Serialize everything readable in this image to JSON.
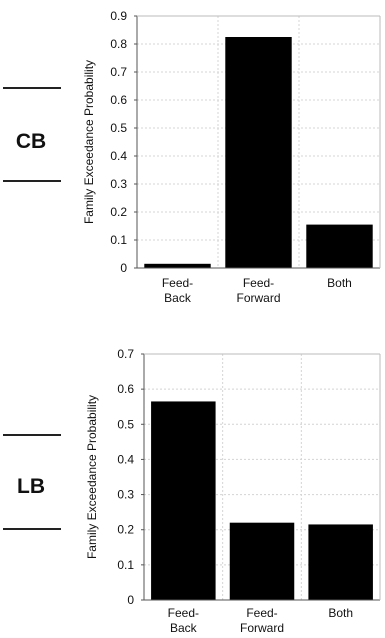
{
  "chart_data": [
    {
      "type": "bar",
      "side_label": "CB",
      "categories": [
        [
          "Feed-",
          "Back"
        ],
        [
          "Feed-",
          "Forward"
        ],
        [
          "Both"
        ]
      ],
      "values": [
        0.015,
        0.825,
        0.155
      ],
      "ylabel": "Family Exceedance Probability",
      "ylim": [
        0,
        0.9
      ],
      "yticks": [
        "0",
        "0.1",
        "0.2",
        "0.3",
        "0.4",
        "0.5",
        "0.6",
        "0.7",
        "0.8",
        "0.9"
      ],
      "grid": true,
      "bar_color": "#000000",
      "grid_color": "#d4d4d4"
    },
    {
      "type": "bar",
      "side_label": "LB",
      "categories": [
        [
          "Feed-",
          "Back"
        ],
        [
          "Feed-",
          "Forward"
        ],
        [
          "Both"
        ]
      ],
      "values": [
        0.565,
        0.22,
        0.215
      ],
      "ylabel": "Family Exceedance Probability",
      "ylim": [
        0,
        0.7
      ],
      "yticks": [
        "0",
        "0.1",
        "0.2",
        "0.3",
        "0.4",
        "0.5",
        "0.6",
        "0.7"
      ],
      "grid": true,
      "bar_color": "#000000",
      "grid_color": "#d4d4d4"
    }
  ]
}
